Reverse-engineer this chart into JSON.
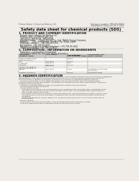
{
  "bg_color": "#f0ede8",
  "title": "Safety data sheet for chemical products (SDS)",
  "header_left": "Product Name: Lithium Ion Battery Cell",
  "header_right_line1": "Substance number: SBR-049-00810",
  "header_right_line2": "Established / Revision: Dec.7.2018",
  "section1_title": "1. PRODUCT AND COMPANY IDENTIFICATION",
  "section1_lines": [
    "· Product name: Lithium Ion Battery Cell",
    "· Product code: Cylindrical-type cell",
    "   INR18650J, INR18650L, INR18650A",
    "· Company name:      Sanyo Electric Co., Ltd., Mobile Energy Company",
    "· Address:      2001  Kamitanaka, Sumoto-City, Hyogo, Japan",
    "· Telephone number:    +81-799-24-1111",
    "· Fax number:  +81-799-26-4101",
    "· Emergency telephone number (daytime): +81-799-26-3942",
    "   (Night and holiday): +81-799-26-4101"
  ],
  "section2_title": "2. COMPOSITION / INFORMATION ON INGREDIENTS",
  "section2_sub": "· Substance or preparation: Preparation",
  "section2_table_header": "· Information about the chemical nature of product:",
  "table_col1": "Component\nchemical name",
  "table_col2": "CAS number",
  "table_col3": "Concentration /\nConcentration range",
  "table_col4": "Classification and\nhazard labeling",
  "table_rows": [
    [
      "Lithium cobalt oxide\n(LiMnxCoyNizO2)",
      "-",
      "30-50%",
      ""
    ],
    [
      "Iron",
      "7439-89-6",
      "10-20%",
      "-"
    ],
    [
      "Aluminum",
      "7429-90-5",
      "2-5%",
      "-"
    ],
    [
      "Graphite\n(flake or graphite-1)\n(or flake graphite-2)",
      "7782-42-5\n7782-40-3",
      "10-25%",
      "-"
    ],
    [
      "Copper",
      "7440-50-8",
      "5-15%",
      "Sensitization of the skin\ngroup R43.2"
    ],
    [
      "Organic electrolyte",
      "-",
      "10-20%",
      "Flammable liquid"
    ]
  ],
  "section3_title": "3. HAZARDS IDENTIFICATION",
  "section3_para1": [
    "For the battery cell, chemical substances are stored in a hermetically sealed metal case, designed to withstand",
    "temperatures or pressures encountered during normal use. As a result, during normal use, there is no",
    "physical danger of ignition or explosion and there is no danger of hazardous materials leakage.",
    "   However, if exposed to a fire, added mechanical shocks, decomposed, when electrolyte misuse,",
    "the gas release vent can be operated. The battery cell case will be breached at fire-potential, hazardous",
    "materials may be released.",
    "   Moreover, if heated strongly by the surrounding fire, solid gas may be emitted."
  ],
  "section3_bullet1": "· Most important hazard and effects:",
  "section3_health": "   Human health effects:",
  "section3_health_items": [
    "      Inhalation: The release of the electrolyte has an anesthesia action and stimulates a respiratory tract.",
    "      Skin contact: The release of the electrolyte stimulates a skin. The electrolyte skin contact causes a",
    "      sore and stimulation on the skin.",
    "      Eye contact: The release of the electrolyte stimulates eyes. The electrolyte eye contact causes a sore",
    "      and stimulation on the eye. Especially, a substance that causes a strong inflammation of the eye is",
    "      contained.",
    "      Environmental effects: Since a battery cell remains in the environment, do not throw out it into the",
    "      environment."
  ],
  "section3_bullet2": "· Specific hazards:",
  "section3_specific": [
    "   If the electrolyte contacts with water, it will generate detrimental hydrogen fluoride.",
    "   Since the used electrolyte is flammable liquid, do not bring close to fire."
  ]
}
